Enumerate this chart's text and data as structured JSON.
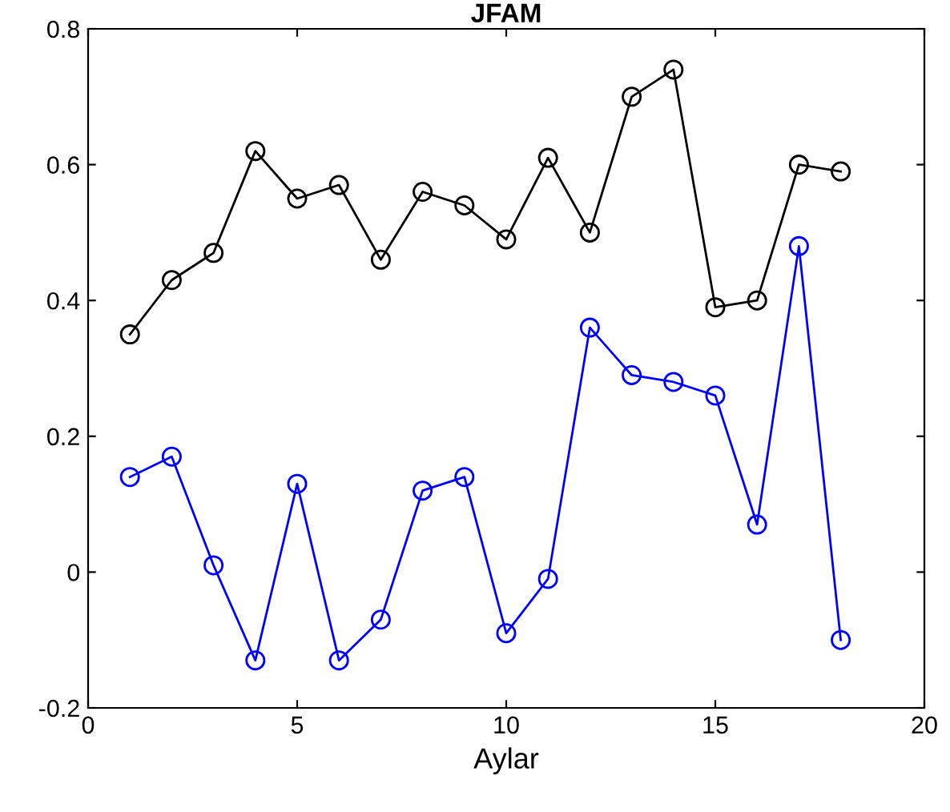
{
  "chart_data": {
    "type": "line",
    "title": "JFAM",
    "xlabel": "Aylar",
    "x": [
      1,
      2,
      3,
      4,
      5,
      6,
      7,
      8,
      9,
      10,
      11,
      12,
      13,
      14,
      15,
      16,
      17,
      18
    ],
    "series": [
      {
        "color": "#000000",
        "values": [
          0.35,
          0.43,
          0.47,
          0.62,
          0.55,
          0.57,
          0.46,
          0.56,
          0.54,
          0.49,
          0.61,
          0.5,
          0.7,
          0.74,
          0.39,
          0.4,
          0.6,
          0.59
        ]
      },
      {
        "color": "#0000ff",
        "values": [
          0.14,
          0.17,
          0.01,
          -0.13,
          0.13,
          -0.13,
          -0.07,
          0.12,
          0.14,
          -0.09,
          -0.01,
          0.36,
          0.29,
          0.28,
          0.26,
          0.07,
          0.48,
          -0.1
        ]
      }
    ],
    "xlim": [
      0,
      20
    ],
    "xticks": [
      0,
      5,
      10,
      15,
      20
    ],
    "ylim": [
      -0.2,
      0.8
    ],
    "yticks": [
      -0.2,
      0,
      0.2,
      0.4,
      0.6,
      0.8
    ],
    "grid": false,
    "legend": false,
    "marker": "circle",
    "line_style": "solid"
  }
}
